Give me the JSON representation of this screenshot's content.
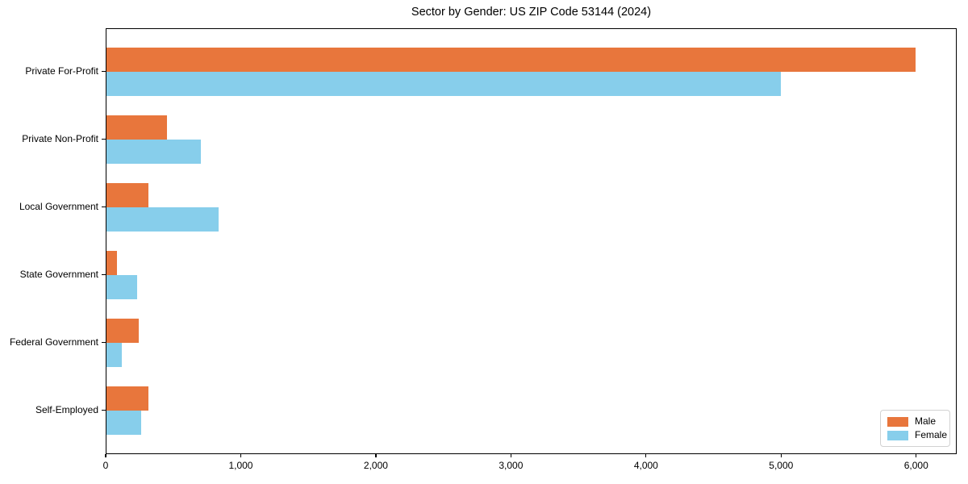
{
  "colors": {
    "male": "#e8763c",
    "female": "#87ceeb",
    "spine": "#000000",
    "legend_border": "#d2d2d2",
    "background": "#ffffff",
    "text": "#000000"
  },
  "chart_data": {
    "type": "bar",
    "orientation": "horizontal",
    "title": "Sector by Gender: US ZIP Code 53144 (2024)",
    "categories": [
      "Private For-Profit",
      "Private Non-Profit",
      "Local Government",
      "State Government",
      "Federal Government",
      "Self-Employed"
    ],
    "series": [
      {
        "name": "Male",
        "color": "#e8763c",
        "values": [
          6000,
          450,
          310,
          80,
          240,
          310
        ]
      },
      {
        "name": "Female",
        "color": "#87ceeb",
        "values": [
          5000,
          700,
          830,
          230,
          115,
          260
        ]
      }
    ],
    "xlabel": "",
    "ylabel": "",
    "xlim": [
      0,
      6300
    ],
    "xticks": [
      0,
      1000,
      2000,
      3000,
      4000,
      5000,
      6000
    ],
    "xtick_labels": [
      "0",
      "1,000",
      "2,000",
      "3,000",
      "4,000",
      "5,000",
      "6,000"
    ],
    "grid": false,
    "legend": {
      "position": "lower right",
      "entries": [
        "Male",
        "Female"
      ]
    }
  }
}
